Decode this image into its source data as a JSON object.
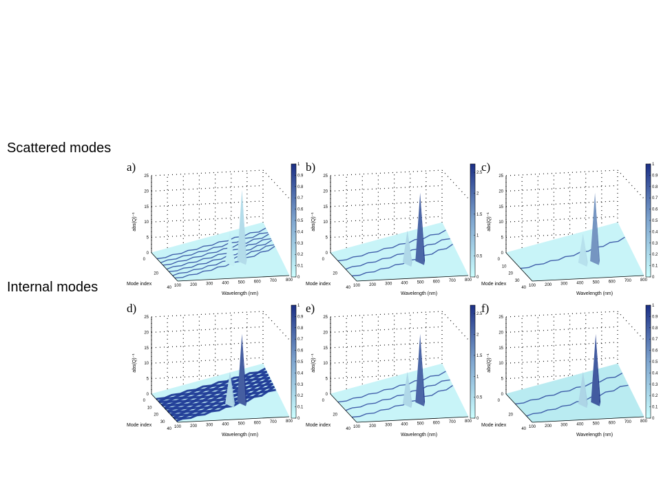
{
  "sections": {
    "scattered": "Scattered modes",
    "internal": "Internal modes"
  },
  "colors": {
    "surface_low": "#c8f4f8",
    "surface_high": "#1b2f86",
    "streak": "#1f3a96"
  },
  "chart_data": [
    {
      "id": "a",
      "type": "surface",
      "panel_label": "a)",
      "section": "Scattered modes",
      "xlabel": "Wavelength (nm)",
      "ylabel": "Mode index",
      "zlabel": "abs(Q)⁻¹",
      "x_ticks": [
        "100",
        "200",
        "300",
        "400",
        "500",
        "600",
        "700",
        "800"
      ],
      "y_ticks": [
        "0",
        "20",
        "40"
      ],
      "z_ticks": [
        "0",
        "5",
        "10",
        "15",
        "20",
        "25"
      ],
      "colorbar_ticks": [
        "0",
        "0.1",
        "0.2",
        "0.3",
        "0.4",
        "0.5",
        "0.6",
        "0.7",
        "0.8",
        "0.9",
        "1"
      ],
      "colorbar_range": [
        0,
        1
      ],
      "xlim": [
        100,
        800
      ],
      "ylim": [
        0,
        40
      ],
      "zlim": [
        0,
        25
      ],
      "peak_color_level": 0.15,
      "streaks": 7,
      "peaks": [
        {
          "wavelength": 490,
          "mode": 25,
          "height": 12
        },
        {
          "wavelength": 565,
          "mode": 25,
          "height": 25
        }
      ]
    },
    {
      "id": "b",
      "type": "surface",
      "panel_label": "b)",
      "section": "Scattered modes",
      "xlabel": "Wavelength (nm)",
      "ylabel": "Mode index",
      "zlabel": "abs(Q)⁻¹",
      "x_ticks": [
        "100",
        "200",
        "300",
        "400",
        "500",
        "600",
        "700",
        "800"
      ],
      "y_ticks": [
        "0",
        "20",
        "40"
      ],
      "z_ticks": [
        "0",
        "5",
        "10",
        "15",
        "20",
        "25"
      ],
      "colorbar_ticks": [
        "0",
        "0.5",
        "1",
        "1.5",
        "2",
        "2.5"
      ],
      "colorbar_range": [
        0,
        2.7
      ],
      "xlim": [
        100,
        800
      ],
      "ylim": [
        0,
        40
      ],
      "zlim": [
        0,
        25
      ],
      "peak_color_level": 0.9,
      "streaks": 3,
      "peaks": [
        {
          "wavelength": 480,
          "mode": 25,
          "height": 12
        },
        {
          "wavelength": 560,
          "mode": 25,
          "height": 24
        }
      ]
    },
    {
      "id": "c",
      "type": "surface",
      "panel_label": "c)",
      "section": "Scattered modes",
      "xlabel": "Wavelength (nm)",
      "ylabel": "Mode index",
      "zlabel": "abs(Q)⁻¹",
      "x_ticks": [
        "100",
        "200",
        "300",
        "400",
        "500",
        "600",
        "700",
        "800"
      ],
      "y_ticks": [
        "0",
        "10",
        "20",
        "30",
        "40"
      ],
      "z_ticks": [
        "0",
        "5",
        "10",
        "15",
        "20",
        "25"
      ],
      "colorbar_ticks": [
        "0",
        "0.1",
        "0.2",
        "0.3",
        "0.4",
        "0.5",
        "0.6",
        "0.7",
        "0.8",
        "0.9",
        "1"
      ],
      "colorbar_range": [
        0,
        1
      ],
      "xlim": [
        100,
        800
      ],
      "ylim": [
        0,
        40
      ],
      "zlim": [
        0,
        25
      ],
      "peak_color_level": 0.6,
      "streaks": 1,
      "peaks": [
        {
          "wavelength": 480,
          "mode": 25,
          "height": 11
        },
        {
          "wavelength": 555,
          "mode": 25,
          "height": 24
        }
      ]
    },
    {
      "id": "d",
      "type": "surface",
      "panel_label": "d)",
      "section": "Internal modes",
      "xlabel": "Wavelength (nm)",
      "ylabel": "Mode index",
      "zlabel": "abs(Q)⁻¹",
      "x_ticks": [
        "100",
        "200",
        "300",
        "400",
        "500",
        "600",
        "700",
        "800"
      ],
      "y_ticks": [
        "0",
        "10",
        "20",
        "30",
        "40"
      ],
      "z_ticks": [
        "0",
        "5",
        "10",
        "15",
        "20",
        "25"
      ],
      "colorbar_ticks": [
        "0",
        "0.1",
        "0.2",
        "0.3",
        "0.4",
        "0.5",
        "0.6",
        "0.7",
        "0.8",
        "0.9",
        "1"
      ],
      "colorbar_range": [
        0,
        1
      ],
      "xlim": [
        100,
        800
      ],
      "ylim": [
        0,
        40
      ],
      "zlim": [
        0,
        25
      ],
      "peak_color_level": 0.95,
      "streaks": 14,
      "peaks": [
        {
          "wavelength": 490,
          "mode": 25,
          "height": 12
        },
        {
          "wavelength": 565,
          "mode": 25,
          "height": 24
        }
      ]
    },
    {
      "id": "e",
      "type": "surface",
      "panel_label": "e)",
      "section": "Internal modes",
      "xlabel": "Wavelength (nm)",
      "ylabel": "Mode index",
      "zlabel": "abs(Q)⁻¹",
      "x_ticks": [
        "100",
        "200",
        "300",
        "400",
        "500",
        "600",
        "700",
        "800"
      ],
      "y_ticks": [
        "0",
        "20",
        "40"
      ],
      "z_ticks": [
        "0",
        "5",
        "10",
        "15",
        "20",
        "25"
      ],
      "colorbar_ticks": [
        "0",
        "0.5",
        "1",
        "1.5",
        "2",
        "2.5"
      ],
      "colorbar_range": [
        0,
        2.7
      ],
      "xlim": [
        100,
        800
      ],
      "ylim": [
        0,
        40
      ],
      "zlim": [
        0,
        25
      ],
      "peak_color_level": 0.9,
      "streaks": 3,
      "peaks": [
        {
          "wavelength": 480,
          "mode": 25,
          "height": 12
        },
        {
          "wavelength": 560,
          "mode": 25,
          "height": 24
        }
      ]
    },
    {
      "id": "f",
      "type": "surface",
      "panel_label": "f)",
      "section": "Internal modes",
      "xlabel": "Wavelength (nm)",
      "ylabel": "Mode index",
      "zlabel": "abs(Q)⁻¹",
      "x_ticks": [
        "100",
        "200",
        "300",
        "400",
        "500",
        "600",
        "700",
        "800"
      ],
      "y_ticks": [
        "0",
        "20",
        "40"
      ],
      "z_ticks": [
        "0",
        "5",
        "10",
        "15",
        "20",
        "25"
      ],
      "colorbar_ticks": [
        "0",
        "0.1",
        "0.2",
        "0.3",
        "0.4",
        "0.5",
        "0.6",
        "0.7",
        "0.8",
        "0.9",
        "1"
      ],
      "colorbar_range": [
        0,
        1
      ],
      "xlim": [
        100,
        800
      ],
      "ylim": [
        0,
        40
      ],
      "zlim": [
        0,
        25
      ],
      "peak_color_level": 0.97,
      "streaks": 2,
      "peaks": [
        {
          "wavelength": 480,
          "mode": 25,
          "height": 12
        },
        {
          "wavelength": 560,
          "mode": 25,
          "height": 24
        }
      ]
    }
  ]
}
